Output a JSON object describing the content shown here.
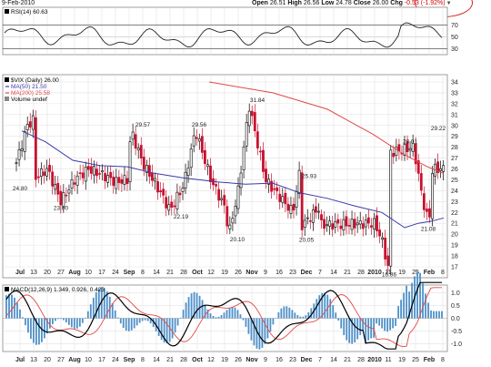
{
  "header": {
    "date": "9-Feb-2010",
    "open_label": "Open",
    "open": "26.51",
    "high_label": "High",
    "high": "26.56",
    "low_label": "Low",
    "low": "24.78",
    "close_label": "Close",
    "close": "26.00",
    "chg_label": "Chg",
    "chg": "-0.53",
    "chg_pct": "(-1.92%)"
  },
  "rsi_panel": {
    "legend": "RSI(14) 60.63",
    "yticks": [
      "70",
      "50",
      "30"
    ]
  },
  "price_panel": {
    "legend_main": "$VIX (Daily) 26.00",
    "legend_ma50": "MA(50) 21.50",
    "legend_ma200": "MA(200) 25.58",
    "legend_volume": "Volume undef",
    "yticks": [
      "34",
      "33",
      "32",
      "31",
      "30",
      "29",
      "28",
      "27",
      "26",
      "25",
      "24",
      "23",
      "22",
      "21",
      "20",
      "19",
      "18",
      "17"
    ],
    "annotations": [
      "24.80",
      "23.00",
      "29.57",
      "22.19",
      "29.56",
      "20.10",
      "31.84",
      "25.93",
      "20.05",
      "16.86",
      "28.01",
      "29.22",
      "21.08"
    ]
  },
  "macd_panel": {
    "legend": "MACD(12,26,9) 1.349, 0.926, 0.423",
    "yticks": [
      "1.0",
      "0.5",
      "0.0",
      "-0.5",
      "-1.0"
    ]
  },
  "xaxis": {
    "labels": [
      "Jul",
      "13",
      "20",
      "27",
      "Aug",
      "10",
      "17",
      "24",
      "Sep",
      "8",
      "14",
      "21",
      "28",
      "Oct",
      "12",
      "19",
      "26",
      "Nov",
      "9",
      "16",
      "23",
      "Dec",
      "7",
      "14",
      "21",
      "28",
      "2010",
      "11",
      "19",
      "25",
      "Feb",
      "8"
    ]
  },
  "chart_data": {
    "type": "candlestick",
    "symbol": "$VIX (Daily)",
    "x_range": [
      "Jul 2009",
      "Feb 2010"
    ],
    "price_ylim": [
      17,
      34
    ],
    "swing_labels": [
      {
        "x": "Jul",
        "value": 24.8
      },
      {
        "x": "Jul 27",
        "value": 23.0
      },
      {
        "x": "Sep 2",
        "value": 29.57
      },
      {
        "x": "Sep 21",
        "value": 22.19
      },
      {
        "x": "Oct 2",
        "value": 29.56
      },
      {
        "x": "Oct 21",
        "value": 20.1
      },
      {
        "x": "Nov 2",
        "value": 31.84
      },
      {
        "x": "Nov 23",
        "value": 25.93
      },
      {
        "x": "Dec 1",
        "value": 20.05
      },
      {
        "x": "Jan 11",
        "value": 16.86
      },
      {
        "x": "Jan 22",
        "value": 28.01
      },
      {
        "x": "Feb 5",
        "value": 29.22
      },
      {
        "x": "Feb 3",
        "value": 21.08
      }
    ],
    "ma50_last": 21.5,
    "ma200_last": 25.58,
    "rsi_last": 60.63,
    "macd": {
      "macd": 1.349,
      "signal": 0.926,
      "histogram": 0.423
    },
    "series_colors": {
      "up": "#000000",
      "down": "#c8102e",
      "ma50": "#3a3aa8",
      "ma200": "#e04848",
      "macd": "#000000",
      "signal": "#e04848",
      "histogram": "#4f90c8"
    },
    "grid": true
  }
}
